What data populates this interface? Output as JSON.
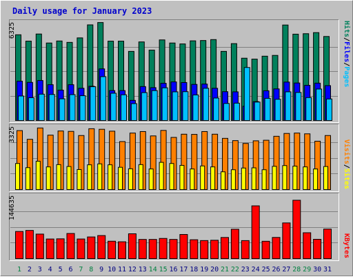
{
  "title": "Daily usage for January 2023",
  "colors": {
    "background": "#c0c0c0",
    "title": "#0000cc",
    "hits": "#00805c",
    "files": "#0000ff",
    "pages": "#00c0ff",
    "visits": "#ff8000",
    "sites": "#ffff00",
    "kbytes": "#ff0000",
    "day_weekday": "#000080",
    "day_weekend": "#008040"
  },
  "chart_data": [
    {
      "type": "bar",
      "panel": "requests",
      "ymax_label": "6325",
      "ymax": 6325,
      "categories": [
        "1",
        "2",
        "3",
        "4",
        "5",
        "6",
        "7",
        "8",
        "9",
        "10",
        "11",
        "12",
        "13",
        "14",
        "15",
        "16",
        "17",
        "18",
        "19",
        "20",
        "21",
        "22",
        "23",
        "24",
        "25",
        "26",
        "27",
        "28",
        "29",
        "30",
        "31"
      ],
      "weekend_days": [
        "1",
        "7",
        "8",
        "14",
        "15",
        "21",
        "22",
        "28",
        "29"
      ],
      "legend": [
        "Pages",
        "/",
        "Files",
        "/",
        "Hits"
      ],
      "series": [
        {
          "name": "Hits",
          "values": [
            5530,
            5120,
            5580,
            5000,
            5130,
            5040,
            5330,
            6170,
            6320,
            5120,
            5120,
            4460,
            5070,
            4540,
            5200,
            5000,
            4940,
            5140,
            5160,
            5220,
            4460,
            4960,
            4020,
            3960,
            4150,
            4200,
            6160,
            5570,
            5600,
            5670,
            5420
          ]
        },
        {
          "name": "Files",
          "values": [
            2540,
            2460,
            2580,
            2310,
            1960,
            2310,
            2080,
            2210,
            3330,
            1930,
            1930,
            1300,
            2190,
            2120,
            2400,
            2490,
            2450,
            2330,
            2350,
            2080,
            1860,
            1850,
            920,
            1220,
            1920,
            2040,
            2480,
            2420,
            2270,
            2410,
            2250
          ]
        },
        {
          "name": "Pages",
          "values": [
            1580,
            1470,
            1700,
            1680,
            1400,
            1670,
            1600,
            2180,
            2830,
            1760,
            1660,
            1090,
            1800,
            1930,
            2110,
            1850,
            1860,
            1650,
            2080,
            1450,
            1100,
            1120,
            3420,
            1190,
            1430,
            1370,
            1850,
            1810,
            1480,
            2030,
            1390
          ]
        }
      ]
    },
    {
      "type": "bar",
      "panel": "visitors",
      "ymax_label": "3325",
      "ymax": 3325,
      "legend": [
        "Sites",
        "/",
        "Visits"
      ],
      "series": [
        {
          "name": "Visits",
          "values": [
            3120,
            2660,
            3260,
            2880,
            3100,
            3080,
            2860,
            3220,
            3190,
            3090,
            2540,
            2990,
            3070,
            2840,
            3130,
            2760,
            2930,
            2920,
            3070,
            2930,
            2710,
            2590,
            2440,
            2580,
            2610,
            2820,
            2970,
            2990,
            2950,
            2560,
            2860
          ]
        },
        {
          "name": "Sites",
          "values": [
            1380,
            1160,
            1500,
            1200,
            1320,
            1220,
            1060,
            1310,
            1360,
            1310,
            1180,
            1100,
            1320,
            1090,
            1440,
            1380,
            1280,
            1090,
            1250,
            1200,
            940,
            1050,
            1140,
            1150,
            1050,
            1230,
            1270,
            1240,
            1200,
            1090,
            1220
          ]
        }
      ]
    },
    {
      "type": "bar",
      "panel": "kbytes",
      "ymax_label": "144635",
      "ymax": 144635,
      "legend": [
        "KBytes"
      ],
      "series": [
        {
          "name": "KBytes",
          "values": [
            62500,
            64900,
            56500,
            45200,
            45600,
            57900,
            45200,
            49900,
            53100,
            40100,
            38800,
            57200,
            44200,
            44200,
            46500,
            44200,
            55600,
            43500,
            41600,
            42300,
            48700,
            67600,
            41500,
            121500,
            40000,
            48800,
            82200,
            134400,
            59600,
            44500,
            68000
          ]
        }
      ]
    }
  ]
}
